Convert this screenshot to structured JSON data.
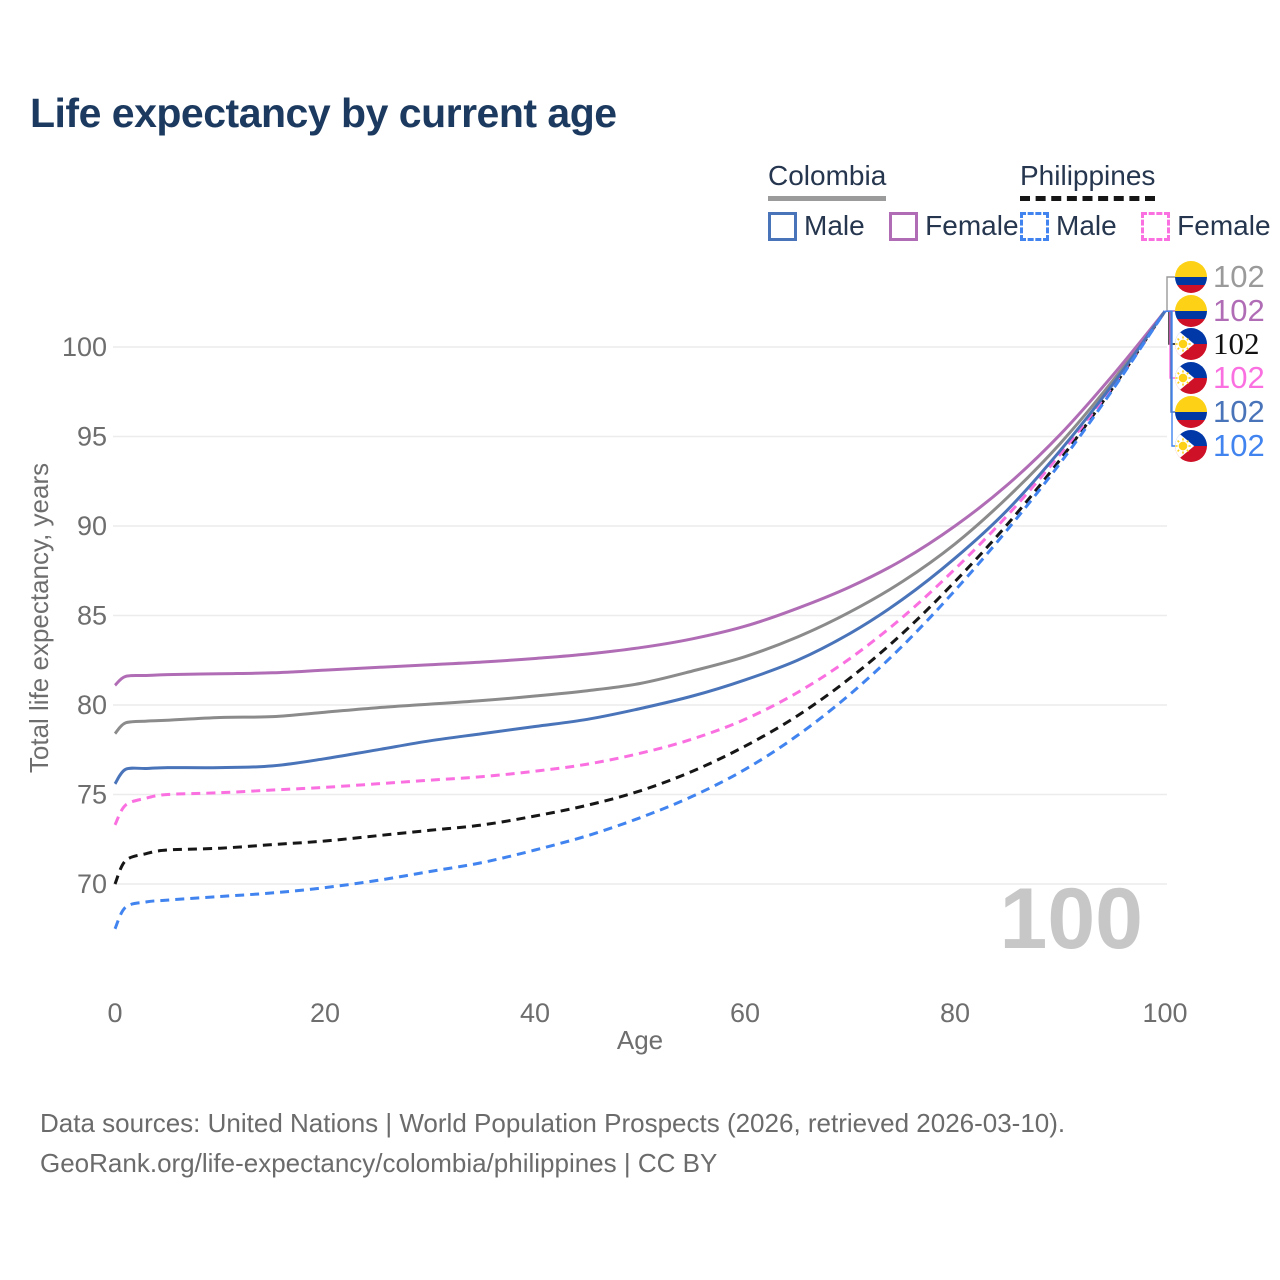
{
  "title": "Life expectancy by current age",
  "legend": {
    "groups": [
      {
        "label": "Colombia",
        "line_style": "solid",
        "underline_color": "#9b9b9b",
        "items": [
          {
            "label": "Male",
            "color": "#4a74b9",
            "dashed": false
          },
          {
            "label": "Female",
            "color": "#b06db5",
            "dashed": false
          }
        ]
      },
      {
        "label": "Philippines",
        "line_style": "dashed",
        "underline_color": "#161616",
        "items": [
          {
            "label": "Male",
            "color": "#4184f0",
            "dashed": true
          },
          {
            "label": "Female",
            "color": "#fa70e1",
            "dashed": true
          }
        ]
      }
    ]
  },
  "watermark": "100",
  "footer": {
    "line1": "Data sources: United Nations | World Population Prospects (2026, retrieved 2026-03-10).",
    "line2": "GeoRank.org/life-expectancy/colombia/philippines | CC BY"
  },
  "colors": {
    "title": "#1c3a5f",
    "axis_text": "#6e6e6e",
    "gridline": "#ececec",
    "watermark": "#c7c7c7",
    "flag_colombia": {
      "yellow": "#FCD116",
      "blue": "#0038A3",
      "red": "#CE1126"
    },
    "flag_philippines": {
      "blue": "#0038A8",
      "red": "#CE1126",
      "white": "#ffffff",
      "sun": "#FCD116"
    }
  },
  "chart_data": {
    "type": "line",
    "title": "Life expectancy by current age",
    "xlabel": "Age",
    "ylabel": "Total life expectancy, years",
    "x_ticks": [
      0,
      20,
      40,
      60,
      80,
      100
    ],
    "y_ticks": [
      70,
      75,
      80,
      85,
      90,
      95,
      100
    ],
    "xlim": [
      0,
      100
    ],
    "ylim": [
      66,
      103
    ],
    "grid": "horizontal-only",
    "legend_position": "top-right",
    "series": [
      {
        "name": "Colombia",
        "country": "Colombia",
        "color": "#8b8b8b",
        "dashed": false,
        "flag": "colombia",
        "end_label": "102",
        "label_row": 0,
        "label_color": "#9a9a9a",
        "label_serif": false,
        "points": [
          [
            0,
            78.4
          ],
          [
            1,
            79.0
          ],
          [
            3,
            79.1
          ],
          [
            5,
            79.15
          ],
          [
            10,
            79.3
          ],
          [
            15,
            79.35
          ],
          [
            20,
            79.6
          ],
          [
            25,
            79.85
          ],
          [
            30,
            80.05
          ],
          [
            35,
            80.25
          ],
          [
            40,
            80.5
          ],
          [
            45,
            80.8
          ],
          [
            50,
            81.2
          ],
          [
            55,
            81.9
          ],
          [
            60,
            82.7
          ],
          [
            65,
            83.8
          ],
          [
            70,
            85.2
          ],
          [
            75,
            86.9
          ],
          [
            80,
            89.0
          ],
          [
            85,
            91.6
          ],
          [
            90,
            94.6
          ],
          [
            95,
            98.1
          ],
          [
            100,
            102
          ]
        ]
      },
      {
        "name": "Colombia Female",
        "country": "Colombia",
        "sex": "Female",
        "color": "#b06db5",
        "dashed": false,
        "flag": "colombia",
        "end_label": "102",
        "label_row": 1,
        "label_color": "#b06db5",
        "label_serif": false,
        "points": [
          [
            0,
            81.1
          ],
          [
            1,
            81.6
          ],
          [
            3,
            81.65
          ],
          [
            5,
            81.7
          ],
          [
            10,
            81.75
          ],
          [
            15,
            81.8
          ],
          [
            20,
            81.95
          ],
          [
            25,
            82.1
          ],
          [
            30,
            82.25
          ],
          [
            35,
            82.4
          ],
          [
            40,
            82.6
          ],
          [
            45,
            82.85
          ],
          [
            50,
            83.2
          ],
          [
            55,
            83.7
          ],
          [
            60,
            84.4
          ],
          [
            65,
            85.4
          ],
          [
            70,
            86.6
          ],
          [
            75,
            88.1
          ],
          [
            80,
            90.0
          ],
          [
            85,
            92.3
          ],
          [
            90,
            95.1
          ],
          [
            95,
            98.4
          ],
          [
            100,
            102
          ]
        ]
      },
      {
        "name": "Philippines",
        "country": "Philippines",
        "color": "#161616",
        "dashed": true,
        "flag": "philippines",
        "end_label": "102",
        "label_row": 2,
        "label_color": "#111111",
        "label_serif": true,
        "points": [
          [
            0,
            70.0
          ],
          [
            1,
            71.3
          ],
          [
            3,
            71.7
          ],
          [
            5,
            71.9
          ],
          [
            10,
            72.0
          ],
          [
            15,
            72.2
          ],
          [
            20,
            72.4
          ],
          [
            25,
            72.7
          ],
          [
            30,
            73.0
          ],
          [
            35,
            73.3
          ],
          [
            40,
            73.8
          ],
          [
            45,
            74.4
          ],
          [
            50,
            75.2
          ],
          [
            55,
            76.3
          ],
          [
            60,
            77.7
          ],
          [
            65,
            79.4
          ],
          [
            70,
            81.5
          ],
          [
            75,
            84.0
          ],
          [
            80,
            86.9
          ],
          [
            85,
            90.1
          ],
          [
            90,
            93.7
          ],
          [
            95,
            97.7
          ],
          [
            100,
            102
          ]
        ]
      },
      {
        "name": "Philippines Female",
        "country": "Philippines",
        "sex": "Female",
        "color": "#fa70e1",
        "dashed": true,
        "flag": "philippines",
        "end_label": "102",
        "label_row": 3,
        "label_color": "#fa70e1",
        "label_serif": false,
        "points": [
          [
            0,
            73.3
          ],
          [
            1,
            74.4
          ],
          [
            3,
            74.8
          ],
          [
            5,
            75.0
          ],
          [
            10,
            75.1
          ],
          [
            15,
            75.25
          ],
          [
            20,
            75.4
          ],
          [
            25,
            75.6
          ],
          [
            30,
            75.8
          ],
          [
            35,
            76.0
          ],
          [
            40,
            76.3
          ],
          [
            45,
            76.7
          ],
          [
            50,
            77.3
          ],
          [
            55,
            78.1
          ],
          [
            60,
            79.2
          ],
          [
            65,
            80.7
          ],
          [
            70,
            82.6
          ],
          [
            75,
            84.9
          ],
          [
            80,
            87.6
          ],
          [
            85,
            90.6
          ],
          [
            90,
            94.0
          ],
          [
            95,
            97.8
          ],
          [
            100,
            102
          ]
        ]
      },
      {
        "name": "Colombia Male",
        "country": "Colombia",
        "sex": "Male",
        "color": "#4a74b9",
        "dashed": false,
        "flag": "colombia",
        "end_label": "102",
        "label_row": 4,
        "label_color": "#4a74b9",
        "label_serif": false,
        "points": [
          [
            0,
            75.6
          ],
          [
            1,
            76.4
          ],
          [
            3,
            76.45
          ],
          [
            5,
            76.5
          ],
          [
            10,
            76.5
          ],
          [
            15,
            76.6
          ],
          [
            20,
            77.0
          ],
          [
            25,
            77.5
          ],
          [
            30,
            78.0
          ],
          [
            35,
            78.4
          ],
          [
            40,
            78.8
          ],
          [
            45,
            79.2
          ],
          [
            50,
            79.8
          ],
          [
            55,
            80.5
          ],
          [
            60,
            81.4
          ],
          [
            65,
            82.5
          ],
          [
            70,
            84.0
          ],
          [
            75,
            85.9
          ],
          [
            80,
            88.2
          ],
          [
            85,
            90.9
          ],
          [
            90,
            94.2
          ],
          [
            95,
            97.9
          ],
          [
            100,
            102
          ]
        ]
      },
      {
        "name": "Philippines Male",
        "country": "Philippines",
        "sex": "Male",
        "color": "#4184f0",
        "dashed": true,
        "flag": "philippines",
        "end_label": "102",
        "label_row": 5,
        "label_color": "#4184f0",
        "label_serif": false,
        "points": [
          [
            0,
            67.5
          ],
          [
            1,
            68.7
          ],
          [
            3,
            69.0
          ],
          [
            5,
            69.1
          ],
          [
            10,
            69.3
          ],
          [
            15,
            69.5
          ],
          [
            20,
            69.8
          ],
          [
            25,
            70.2
          ],
          [
            30,
            70.7
          ],
          [
            35,
            71.2
          ],
          [
            40,
            71.9
          ],
          [
            45,
            72.7
          ],
          [
            50,
            73.7
          ],
          [
            55,
            74.9
          ],
          [
            60,
            76.4
          ],
          [
            65,
            78.3
          ],
          [
            70,
            80.6
          ],
          [
            75,
            83.3
          ],
          [
            80,
            86.4
          ],
          [
            85,
            89.8
          ],
          [
            90,
            93.5
          ],
          [
            95,
            97.6
          ],
          [
            100,
            102
          ]
        ]
      }
    ]
  }
}
